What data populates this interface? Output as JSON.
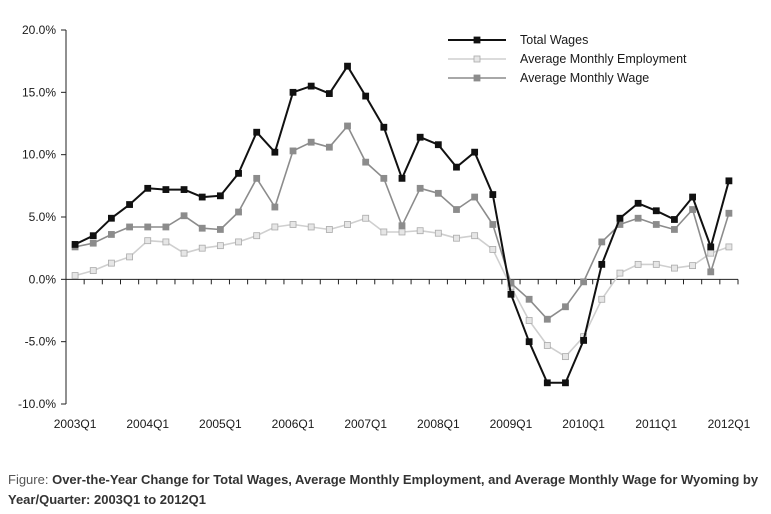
{
  "chart_data": {
    "type": "line",
    "title": "",
    "xlabel": "",
    "ylabel": "",
    "ylim": [
      -10,
      20
    ],
    "y_ticks": [
      20,
      15,
      10,
      5,
      0,
      -5,
      -10
    ],
    "y_tick_labels": [
      "20.0%",
      "15.0%",
      "10.0%",
      "5.0%",
      "0.0%",
      "-5.0%",
      "-10.0%"
    ],
    "x_tick_labels": [
      "2003Q1",
      "2004Q1",
      "2005Q1",
      "2006Q1",
      "2007Q1",
      "2008Q1",
      "2009Q1",
      "2010Q1",
      "2011Q1",
      "2012Q1"
    ],
    "x": [
      "2003Q1",
      "2003Q2",
      "2003Q3",
      "2003Q4",
      "2004Q1",
      "2004Q2",
      "2004Q3",
      "2004Q4",
      "2005Q1",
      "2005Q2",
      "2005Q3",
      "2005Q4",
      "2006Q1",
      "2006Q2",
      "2006Q3",
      "2006Q4",
      "2007Q1",
      "2007Q2",
      "2007Q3",
      "2007Q4",
      "2008Q1",
      "2008Q2",
      "2008Q3",
      "2008Q4",
      "2009Q1",
      "2009Q2",
      "2009Q3",
      "2009Q4",
      "2010Q1",
      "2010Q2",
      "2010Q3",
      "2010Q4",
      "2011Q1",
      "2011Q2",
      "2011Q3",
      "2011Q4",
      "2012Q1"
    ],
    "grid": false,
    "legend_position": "top-right",
    "series": [
      {
        "name": "Total Wages",
        "color": "#111111",
        "marker_fill": "#111111",
        "values": [
          2.8,
          3.5,
          4.9,
          6.0,
          7.3,
          7.2,
          7.2,
          6.6,
          6.7,
          8.5,
          11.8,
          10.2,
          15.0,
          15.5,
          14.9,
          17.1,
          14.7,
          12.2,
          8.1,
          11.4,
          10.8,
          9.0,
          10.2,
          6.8,
          -1.2,
          -5.0,
          -8.3,
          -8.3,
          -4.9,
          1.2,
          4.9,
          6.1,
          5.5,
          4.8,
          6.6,
          2.6,
          7.9
        ]
      },
      {
        "name": "Average Monthly Employment",
        "color": "#cfcfcf",
        "marker_fill": "#e6e6e6",
        "values": [
          0.3,
          0.7,
          1.3,
          1.8,
          3.1,
          3.0,
          2.1,
          2.5,
          2.7,
          3.0,
          3.5,
          4.2,
          4.4,
          4.2,
          4.0,
          4.4,
          4.9,
          3.8,
          3.8,
          3.9,
          3.7,
          3.3,
          3.5,
          2.4,
          -0.6,
          -3.3,
          -5.3,
          -6.2,
          -4.6,
          -1.6,
          0.5,
          1.2,
          1.2,
          0.9,
          1.1,
          2.1,
          2.6
        ]
      },
      {
        "name": "Average Monthly Wage",
        "color": "#8c8c8c",
        "marker_fill": "#8c8c8c",
        "values": [
          2.6,
          2.9,
          3.6,
          4.2,
          4.2,
          4.2,
          5.1,
          4.1,
          4.0,
          5.4,
          8.1,
          5.8,
          10.3,
          11.0,
          10.6,
          12.3,
          9.4,
          8.1,
          4.3,
          7.3,
          6.9,
          5.6,
          6.6,
          4.4,
          -0.3,
          -1.6,
          -3.2,
          -2.2,
          -0.2,
          3.0,
          4.4,
          4.9,
          4.4,
          4.0,
          5.6,
          0.6,
          5.3
        ]
      }
    ]
  },
  "caption": {
    "lead": "Figure:",
    "text": "Over-the-Year Change for Total Wages, Average Monthly Employment, and Average Monthly Wage for Wyoming by Year/Quarter: 2003Q1 to 2012Q1"
  }
}
